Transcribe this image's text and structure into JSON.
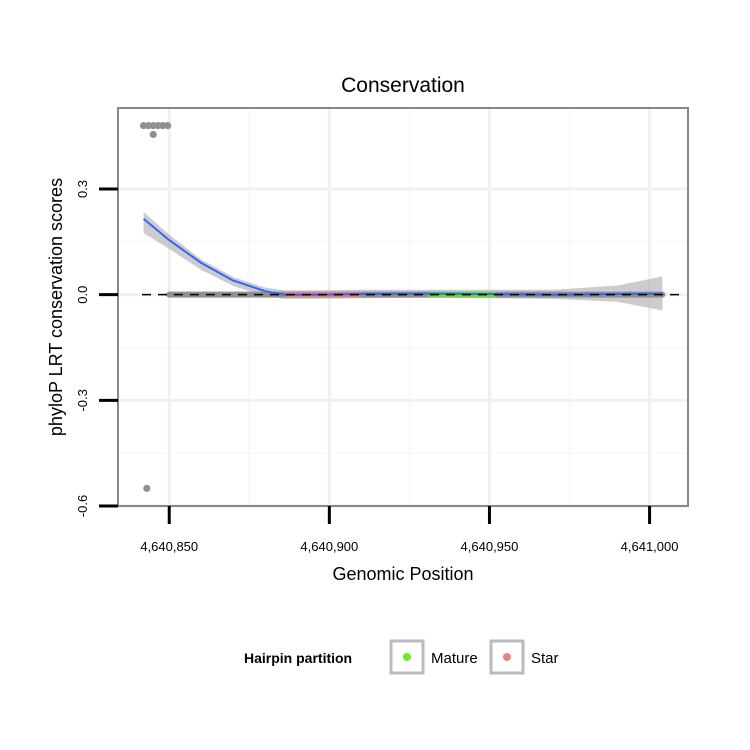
{
  "chart_data": {
    "type": "scatter",
    "title": "Conservation",
    "xlabel": "Genomic Position",
    "ylabel": "phyloP LRT conservation scores",
    "xlim": [
      4640834,
      4641012
    ],
    "ylim": [
      -0.6,
      0.53
    ],
    "x_ticks": [
      {
        "value": 4640850,
        "label": "4,640,850"
      },
      {
        "value": 4640900,
        "label": "4,640,900"
      },
      {
        "value": 4640950,
        "label": "4,640,950"
      },
      {
        "value": 4641000,
        "label": "4,641,000"
      }
    ],
    "y_ticks": [
      {
        "value": 0.3,
        "label": "0.3"
      },
      {
        "value": 0.0,
        "label": "0.0"
      },
      {
        "value": -0.3,
        "label": "-0.3"
      },
      {
        "value": -0.6,
        "label": "-0.6"
      }
    ],
    "reference_line": {
      "y": 0.0,
      "style": "dashed"
    },
    "outliers": [
      {
        "x": 4640842,
        "y": 0.48
      },
      {
        "x": 4640843.5,
        "y": 0.48
      },
      {
        "x": 4640845,
        "y": 0.48
      },
      {
        "x": 4640846.5,
        "y": 0.48
      },
      {
        "x": 4640848,
        "y": 0.48
      },
      {
        "x": 4640849.5,
        "y": 0.48
      },
      {
        "x": 4640845,
        "y": 0.455
      },
      {
        "x": 4640843,
        "y": -0.55
      }
    ],
    "baseline_points": {
      "x_start": 4640850,
      "x_end": 4641004,
      "y": 0.0
    },
    "partitions": [
      {
        "name": "Star",
        "color": "#f08080",
        "x_start": 4640886,
        "x_end": 4640910
      },
      {
        "name": "Mature",
        "color": "#66ee22",
        "x_start": 4640931,
        "x_end": 4640952
      }
    ],
    "smooth_line": {
      "color": "#3366ff",
      "band_color": "#bbbbbb",
      "x": [
        4640842,
        4640850,
        4640860,
        4640870,
        4640880,
        4640886,
        4640895,
        4640910,
        4640930,
        4640950,
        4640970,
        4640990,
        4641004
      ],
      "y": [
        0.215,
        0.155,
        0.09,
        0.04,
        0.01,
        0.0,
        0.0,
        0.002,
        0.003,
        0.002,
        0.0,
        0.002,
        0.003
      ],
      "upper": [
        0.235,
        0.17,
        0.1,
        0.05,
        0.02,
        0.012,
        0.012,
        0.014,
        0.014,
        0.014,
        0.014,
        0.026,
        0.052
      ],
      "lower": [
        0.175,
        0.13,
        0.07,
        0.025,
        -0.005,
        -0.012,
        -0.012,
        -0.01,
        -0.009,
        -0.01,
        -0.012,
        -0.02,
        -0.045
      ]
    },
    "legend": {
      "title": "Hairpin partition",
      "placement": "bottom",
      "items": [
        {
          "label": "Mature",
          "color": "#66ee22"
        },
        {
          "label": "Star",
          "color": "#f08080"
        }
      ]
    }
  }
}
